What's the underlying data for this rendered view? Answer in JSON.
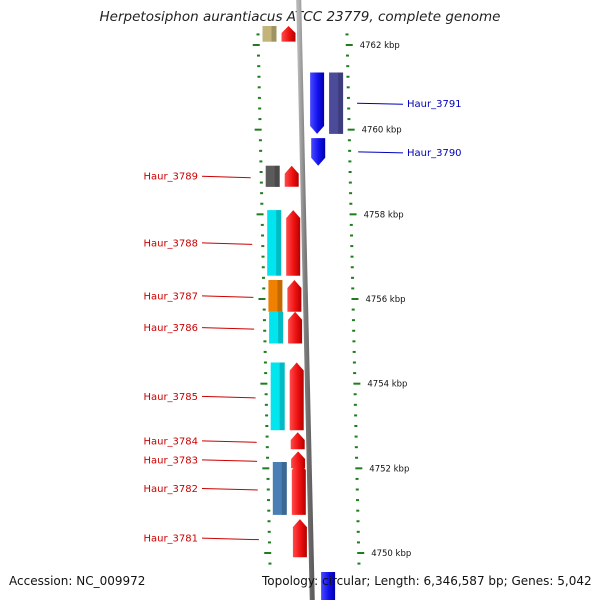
{
  "title": "Herpetosiphon aurantiacus ATCC 23779, complete genome",
  "footer": {
    "accession": "Accession: NC_009972",
    "topology": "Topology: circular; Length: 6,346,587 bp; Genes: 5,042"
  },
  "colors": {
    "backbone": "#888888",
    "tick": "#1e7d1e",
    "cds_forward": "#ee1111",
    "cds_reverse": "#1111ee",
    "label_forward": "#cc0000",
    "label_reverse": "#0000bb"
  },
  "ticks": [
    {
      "kbp": 4762,
      "label": "4762 kbp"
    },
    {
      "kbp": 4760,
      "label": "4760 kbp"
    },
    {
      "kbp": 4758,
      "label": "4758 kbp"
    },
    {
      "kbp": 4756,
      "label": "4756 kbp"
    },
    {
      "kbp": 4754,
      "label": "4754 kbp"
    },
    {
      "kbp": 4752,
      "label": "4752 kbp"
    },
    {
      "kbp": 4750,
      "label": "4750 kbp"
    }
  ],
  "genes": [
    {
      "name": "",
      "strand": "forward",
      "start": 4762.08,
      "end": 4762.45,
      "cog_color": "#c2b47a"
    },
    {
      "name": "Haur_3791",
      "strand": "reverse",
      "start": 4759.9,
      "end": 4761.35,
      "cog_color": "#4b4b99"
    },
    {
      "name": "Haur_3790",
      "strand": "reverse",
      "start": 4759.15,
      "end": 4759.8,
      "cog_color": ""
    },
    {
      "name": "Haur_3789",
      "strand": "forward",
      "start": 4758.65,
      "end": 4759.15,
      "cog_color": "#5b5b5b"
    },
    {
      "name": "Haur_3788",
      "strand": "forward",
      "start": 4756.55,
      "end": 4758.1,
      "cog_color": "#00e5ee"
    },
    {
      "name": "Haur_3787",
      "strand": "forward",
      "start": 4755.7,
      "end": 4756.45,
      "cog_color": "#f08000"
    },
    {
      "name": "Haur_3786",
      "strand": "forward",
      "start": 4754.95,
      "end": 4755.7,
      "cog_color": "#00e5ee"
    },
    {
      "name": "Haur_3785",
      "strand": "forward",
      "start": 4752.9,
      "end": 4754.5,
      "cog_color": "#00e5ee"
    },
    {
      "name": "Haur_3784",
      "strand": "forward",
      "start": 4752.45,
      "end": 4752.85,
      "cog_color": ""
    },
    {
      "name": "Haur_3783",
      "strand": "forward",
      "start": 4752.0,
      "end": 4752.4,
      "cog_color": ""
    },
    {
      "name": "Haur_3782",
      "strand": "forward",
      "start": 4750.9,
      "end": 4752.15,
      "cog_color": "#4a7fb5"
    },
    {
      "name": "Haur_3781",
      "strand": "forward",
      "start": 4749.9,
      "end": 4750.8,
      "cog_color": ""
    },
    {
      "name": "",
      "strand": "reverse",
      "start": 4748.65,
      "end": 4749.55,
      "cog_color": ""
    }
  ]
}
